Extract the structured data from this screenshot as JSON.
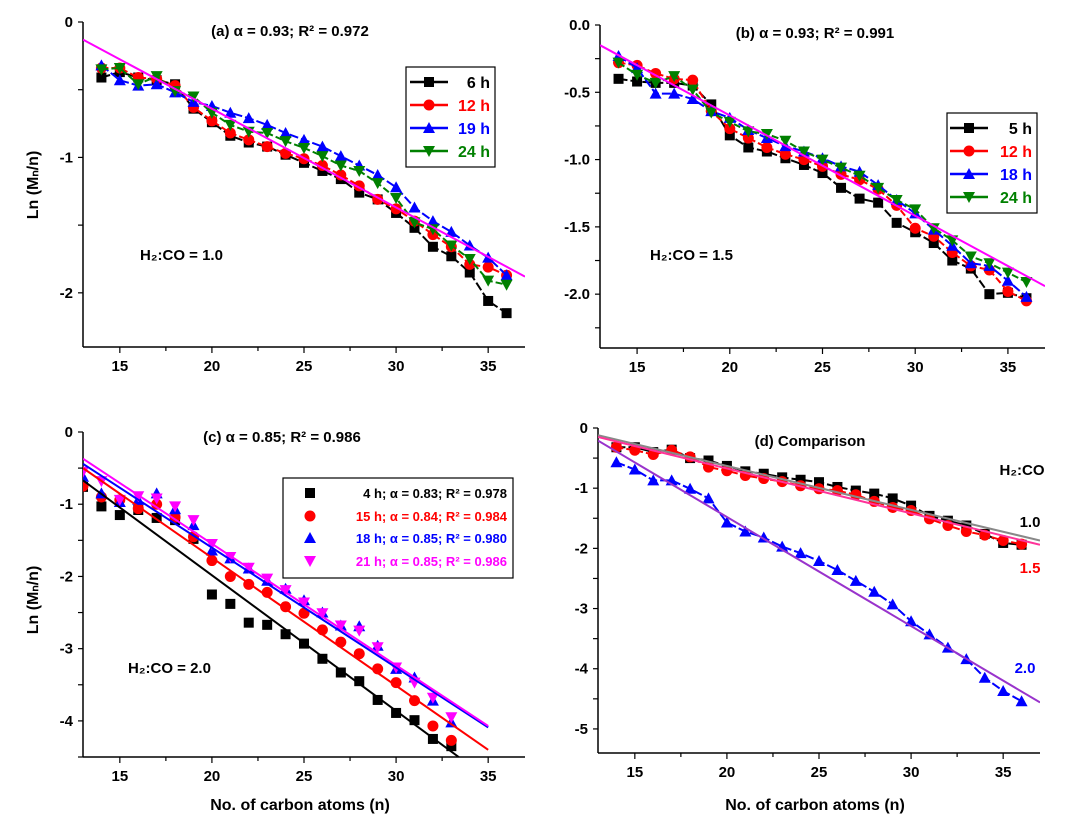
{
  "chart_data": [
    {
      "type": "line",
      "title": "(a) α = 0.93; R² = 0.972",
      "xlabel": "",
      "ylabel": "Ln (Mₙ/n)",
      "xlim": [
        13,
        37
      ],
      "ylim": [
        -2.4,
        0
      ],
      "xticks": [
        15,
        20,
        25,
        30,
        35
      ],
      "yticks": [
        {
          "v": 0,
          "label": "0"
        },
        {
          "v": -1,
          "label": "-1"
        },
        {
          "v": -2,
          "label": "-2"
        }
      ],
      "yminor": 0.5,
      "legend": "top-right",
      "legend_style": "line-marker",
      "annotation": "H₂:CO = 1.0",
      "x": [
        14,
        15,
        16,
        17,
        18,
        19,
        20,
        21,
        22,
        23,
        24,
        25,
        26,
        27,
        28,
        29,
        30,
        31,
        32,
        33,
        34,
        35,
        36
      ],
      "series": [
        {
          "name": "6 h",
          "color": "#000000",
          "marker": "square",
          "values": [
            -0.41,
            -0.37,
            -0.41,
            -0.43,
            -0.46,
            -0.64,
            -0.74,
            -0.84,
            -0.89,
            -0.92,
            -0.98,
            -1.04,
            -1.1,
            -1.16,
            -1.26,
            -1.31,
            -1.41,
            -1.52,
            -1.66,
            -1.73,
            -1.85,
            -2.06,
            -2.15
          ]
        },
        {
          "name": "12 h",
          "color": "#ff0000",
          "marker": "circle",
          "values": [
            -0.34,
            -0.34,
            -0.41,
            -0.42,
            -0.47,
            -0.63,
            -0.73,
            -0.82,
            -0.87,
            -0.92,
            -0.97,
            -1.01,
            -1.06,
            -1.13,
            -1.21,
            -1.31,
            -1.38,
            -1.47,
            -1.57,
            -1.66,
            -1.79,
            -1.81,
            -1.87
          ]
        },
        {
          "name": "19 h",
          "color": "#0000ff",
          "marker": "triangle-up",
          "values": [
            -0.32,
            -0.43,
            -0.47,
            -0.46,
            -0.52,
            -0.59,
            -0.62,
            -0.67,
            -0.71,
            -0.76,
            -0.82,
            -0.87,
            -0.92,
            -0.99,
            -1.06,
            -1.13,
            -1.22,
            -1.37,
            -1.47,
            -1.55,
            -1.65,
            -1.74,
            -1.87
          ]
        },
        {
          "name": "24 h",
          "color": "#008000",
          "marker": "triangle-down",
          "values": [
            -0.35,
            -0.34,
            -0.46,
            -0.4,
            -0.51,
            -0.55,
            -0.67,
            -0.76,
            -0.81,
            -0.82,
            -0.88,
            -0.93,
            -0.99,
            -1.06,
            -1.1,
            -1.19,
            -1.3,
            -1.48,
            -1.53,
            -1.65,
            -1.75,
            -1.91,
            -1.94
          ]
        }
      ],
      "fit_lines": [
        {
          "color": "#ff00ff",
          "from": [
            13,
            -0.13
          ],
          "to": [
            37,
            -1.88
          ]
        }
      ]
    },
    {
      "type": "line",
      "title": "(b) α = 0.93; R² = 0.991",
      "xlabel": "",
      "ylabel": "",
      "xlim": [
        13,
        37
      ],
      "ylim": [
        -2.4,
        0
      ],
      "xticks": [
        15,
        20,
        25,
        30,
        35
      ],
      "yticks": [
        {
          "v": 0,
          "label": "0.0"
        },
        {
          "v": -0.5,
          "label": "-0.5"
        },
        {
          "v": -1,
          "label": "-1.0"
        },
        {
          "v": -1.5,
          "label": "-1.5"
        },
        {
          "v": -2,
          "label": "-2.0"
        }
      ],
      "yminor": 0.25,
      "legend": "right",
      "legend_style": "line-marker",
      "annotation": "H₂:CO = 1.5",
      "x": [
        14,
        15,
        16,
        17,
        18,
        19,
        20,
        21,
        22,
        23,
        24,
        25,
        26,
        27,
        28,
        29,
        30,
        31,
        32,
        33,
        34,
        35,
        36
      ],
      "series": [
        {
          "name": "5 h",
          "color": "#000000",
          "marker": "square",
          "values": [
            -0.4,
            -0.42,
            -0.43,
            -0.43,
            -0.45,
            -0.59,
            -0.82,
            -0.91,
            -0.94,
            -0.99,
            -1.04,
            -1.1,
            -1.21,
            -1.29,
            -1.32,
            -1.47,
            -1.54,
            -1.62,
            -1.75,
            -1.81,
            -2.0,
            -1.99,
            -2.03
          ]
        },
        {
          "name": "12 h",
          "color": "#ff0000",
          "marker": "circle",
          "values": [
            -0.28,
            -0.3,
            -0.36,
            -0.4,
            -0.41,
            -0.64,
            -0.77,
            -0.84,
            -0.91,
            -0.96,
            -1.0,
            -1.05,
            -1.11,
            -1.15,
            -1.22,
            -1.34,
            -1.51,
            -1.57,
            -1.69,
            -1.79,
            -1.82,
            -1.98,
            -2.05
          ]
        },
        {
          "name": "18 h",
          "color": "#0000ff",
          "marker": "triangle-up",
          "values": [
            -0.23,
            -0.32,
            -0.51,
            -0.51,
            -0.55,
            -0.64,
            -0.69,
            -0.78,
            -0.84,
            -0.9,
            -0.94,
            -0.99,
            -1.05,
            -1.09,
            -1.19,
            -1.3,
            -1.4,
            -1.52,
            -1.64,
            -1.77,
            -1.79,
            -1.9,
            -2.02
          ]
        },
        {
          "name": "24 h",
          "color": "#008000",
          "marker": "triangle-down",
          "values": [
            -0.28,
            -0.37,
            -0.43,
            -0.38,
            -0.48,
            -0.65,
            -0.72,
            -0.79,
            -0.81,
            -0.86,
            -0.94,
            -1.0,
            -1.06,
            -1.12,
            -1.21,
            -1.3,
            -1.37,
            -1.51,
            -1.6,
            -1.72,
            -1.77,
            -1.84,
            -1.91
          ]
        }
      ],
      "fit_lines": [
        {
          "color": "#ff00ff",
          "from": [
            13,
            -0.15
          ],
          "to": [
            37,
            -1.94
          ]
        }
      ]
    },
    {
      "type": "scatter",
      "title": "(c) α = 0.85; R² = 0.986",
      "xlabel": "No. of carbon atoms (n)",
      "ylabel": "Ln (Mₙ/n)",
      "xlim": [
        13,
        37
      ],
      "ylim": [
        -4.5,
        0
      ],
      "xticks": [
        15,
        20,
        25,
        30,
        35
      ],
      "yticks": [
        {
          "v": 0,
          "label": "0"
        },
        {
          "v": -1,
          "label": "-1"
        },
        {
          "v": -2,
          "label": "-2"
        },
        {
          "v": -3,
          "label": "-3"
        },
        {
          "v": -4,
          "label": "-4"
        }
      ],
      "yminor": 0.5,
      "legend": "top-right",
      "legend_style": "marker",
      "annotation": "H₂:CO = 2.0",
      "x": [
        13,
        14,
        15,
        16,
        17,
        18,
        19,
        20,
        21,
        22,
        23,
        24,
        25,
        26,
        27,
        28,
        29,
        30,
        31,
        32,
        33
      ],
      "series": [
        {
          "name": "4 h; α = 0.83; R² = 0.978",
          "color": "#000000",
          "marker": "square",
          "values": [
            -0.76,
            -1.03,
            -1.15,
            -1.08,
            -1.19,
            -1.22,
            -1.48,
            -2.25,
            -2.38,
            -2.64,
            -2.67,
            -2.8,
            -2.93,
            -3.14,
            -3.33,
            -3.45,
            -3.71,
            -3.89,
            -3.99,
            -4.25,
            -4.35
          ]
        },
        {
          "name": "15 h; α = 0.84; R² = 0.984",
          "color": "#ff0000",
          "marker": "circle",
          "values": [
            -0.75,
            -0.9,
            -0.94,
            -1.06,
            -1.0,
            -1.18,
            -1.45,
            -1.78,
            -2.0,
            -2.11,
            -2.22,
            -2.42,
            -2.51,
            -2.74,
            -2.91,
            -3.07,
            -3.28,
            -3.47,
            -3.72,
            -4.07,
            -4.27
          ]
        },
        {
          "name": "18 h; α = 0.85; R² = 0.980",
          "color": "#0000ff",
          "marker": "triangle-up",
          "values": [
            -0.62,
            -0.85,
            -0.97,
            -0.94,
            -0.85,
            -1.07,
            -1.29,
            -1.64,
            -1.75,
            -1.89,
            -2.06,
            -2.17,
            -2.33,
            -2.5,
            -2.68,
            -2.69,
            -2.96,
            -3.28,
            -3.4,
            -3.72,
            -4.02
          ]
        },
        {
          "name": "21 h; α = 0.85; R² = 0.986",
          "color": "#ff00ff",
          "marker": "triangle-down",
          "values": [
            -0.55,
            -0.68,
            -0.94,
            -0.89,
            -0.92,
            -1.03,
            -1.22,
            -1.55,
            -1.73,
            -1.88,
            -2.03,
            -2.19,
            -2.36,
            -2.51,
            -2.68,
            -2.75,
            -2.98,
            -3.26,
            -3.47,
            -3.68,
            -3.95
          ]
        }
      ],
      "fit_lines": [
        {
          "color": "#000000",
          "from": [
            13,
            -0.67
          ],
          "to": [
            33.4,
            -4.5
          ]
        },
        {
          "color": "#ff0000",
          "from": [
            13,
            -0.5
          ],
          "to": [
            35,
            -4.4
          ]
        },
        {
          "color": "#0000ff",
          "from": [
            13,
            -0.44
          ],
          "to": [
            35,
            -4.09
          ]
        },
        {
          "color": "#ff00ff",
          "from": [
            13,
            -0.37
          ],
          "to": [
            35,
            -4.07
          ]
        }
      ]
    },
    {
      "type": "line",
      "title": "(d) Comparison",
      "xlabel": "No. of carbon atoms (n)",
      "ylabel": "",
      "xlim": [
        13,
        37
      ],
      "ylim": [
        -5.4,
        0
      ],
      "xticks": [
        15,
        20,
        25,
        30,
        35
      ],
      "yticks": [
        {
          "v": 0,
          "label": "0"
        },
        {
          "v": -1,
          "label": "-1"
        },
        {
          "v": -2,
          "label": "-2"
        },
        {
          "v": -3,
          "label": "-3"
        },
        {
          "v": -4,
          "label": "-4"
        },
        {
          "v": -5,
          "label": "-5"
        }
      ],
      "yminor": 0.5,
      "legend": "right (inline labels)",
      "legend_title": "H₂:CO",
      "x": [
        14,
        15,
        16,
        17,
        18,
        19,
        20,
        21,
        22,
        23,
        24,
        25,
        26,
        27,
        28,
        29,
        30,
        31,
        32,
        33,
        34,
        35,
        36
      ],
      "series": [
        {
          "name": "1.0",
          "color": "#000000",
          "marker": "square",
          "values": [
            -0.32,
            -0.32,
            -0.4,
            -0.36,
            -0.5,
            -0.54,
            -0.63,
            -0.72,
            -0.76,
            -0.82,
            -0.86,
            -0.9,
            -0.98,
            -1.04,
            -1.09,
            -1.17,
            -1.29,
            -1.46,
            -1.54,
            -1.62,
            -1.76,
            -1.91,
            -1.94
          ]
        },
        {
          "name": "1.5",
          "color": "#ff0000",
          "marker": "circle",
          "values": [
            -0.32,
            -0.37,
            -0.44,
            -0.37,
            -0.48,
            -0.65,
            -0.71,
            -0.79,
            -0.84,
            -0.89,
            -0.96,
            -1.01,
            -1.04,
            -1.11,
            -1.22,
            -1.32,
            -1.37,
            -1.51,
            -1.62,
            -1.72,
            -1.78,
            -1.87,
            -1.93
          ]
        },
        {
          "name": "2.0",
          "color": "#0000ff",
          "marker": "triangle-up",
          "values": [
            -0.57,
            -0.69,
            -0.87,
            -0.87,
            -1.01,
            -1.17,
            -1.57,
            -1.72,
            -1.82,
            -1.97,
            -2.08,
            -2.21,
            -2.36,
            -2.54,
            -2.72,
            -2.93,
            -3.21,
            -3.43,
            -3.65,
            -3.84,
            -4.15,
            -4.37,
            -4.54
          ]
        }
      ],
      "fit_lines": [
        {
          "color": "#888888",
          "from": [
            13,
            -0.12
          ],
          "to": [
            37,
            -1.87
          ]
        },
        {
          "color": "#ff3399",
          "from": [
            13,
            -0.15
          ],
          "to": [
            37,
            -1.94
          ]
        },
        {
          "color": "#9933cc",
          "from": [
            13,
            -0.21
          ],
          "to": [
            37,
            -4.56
          ]
        }
      ]
    }
  ]
}
